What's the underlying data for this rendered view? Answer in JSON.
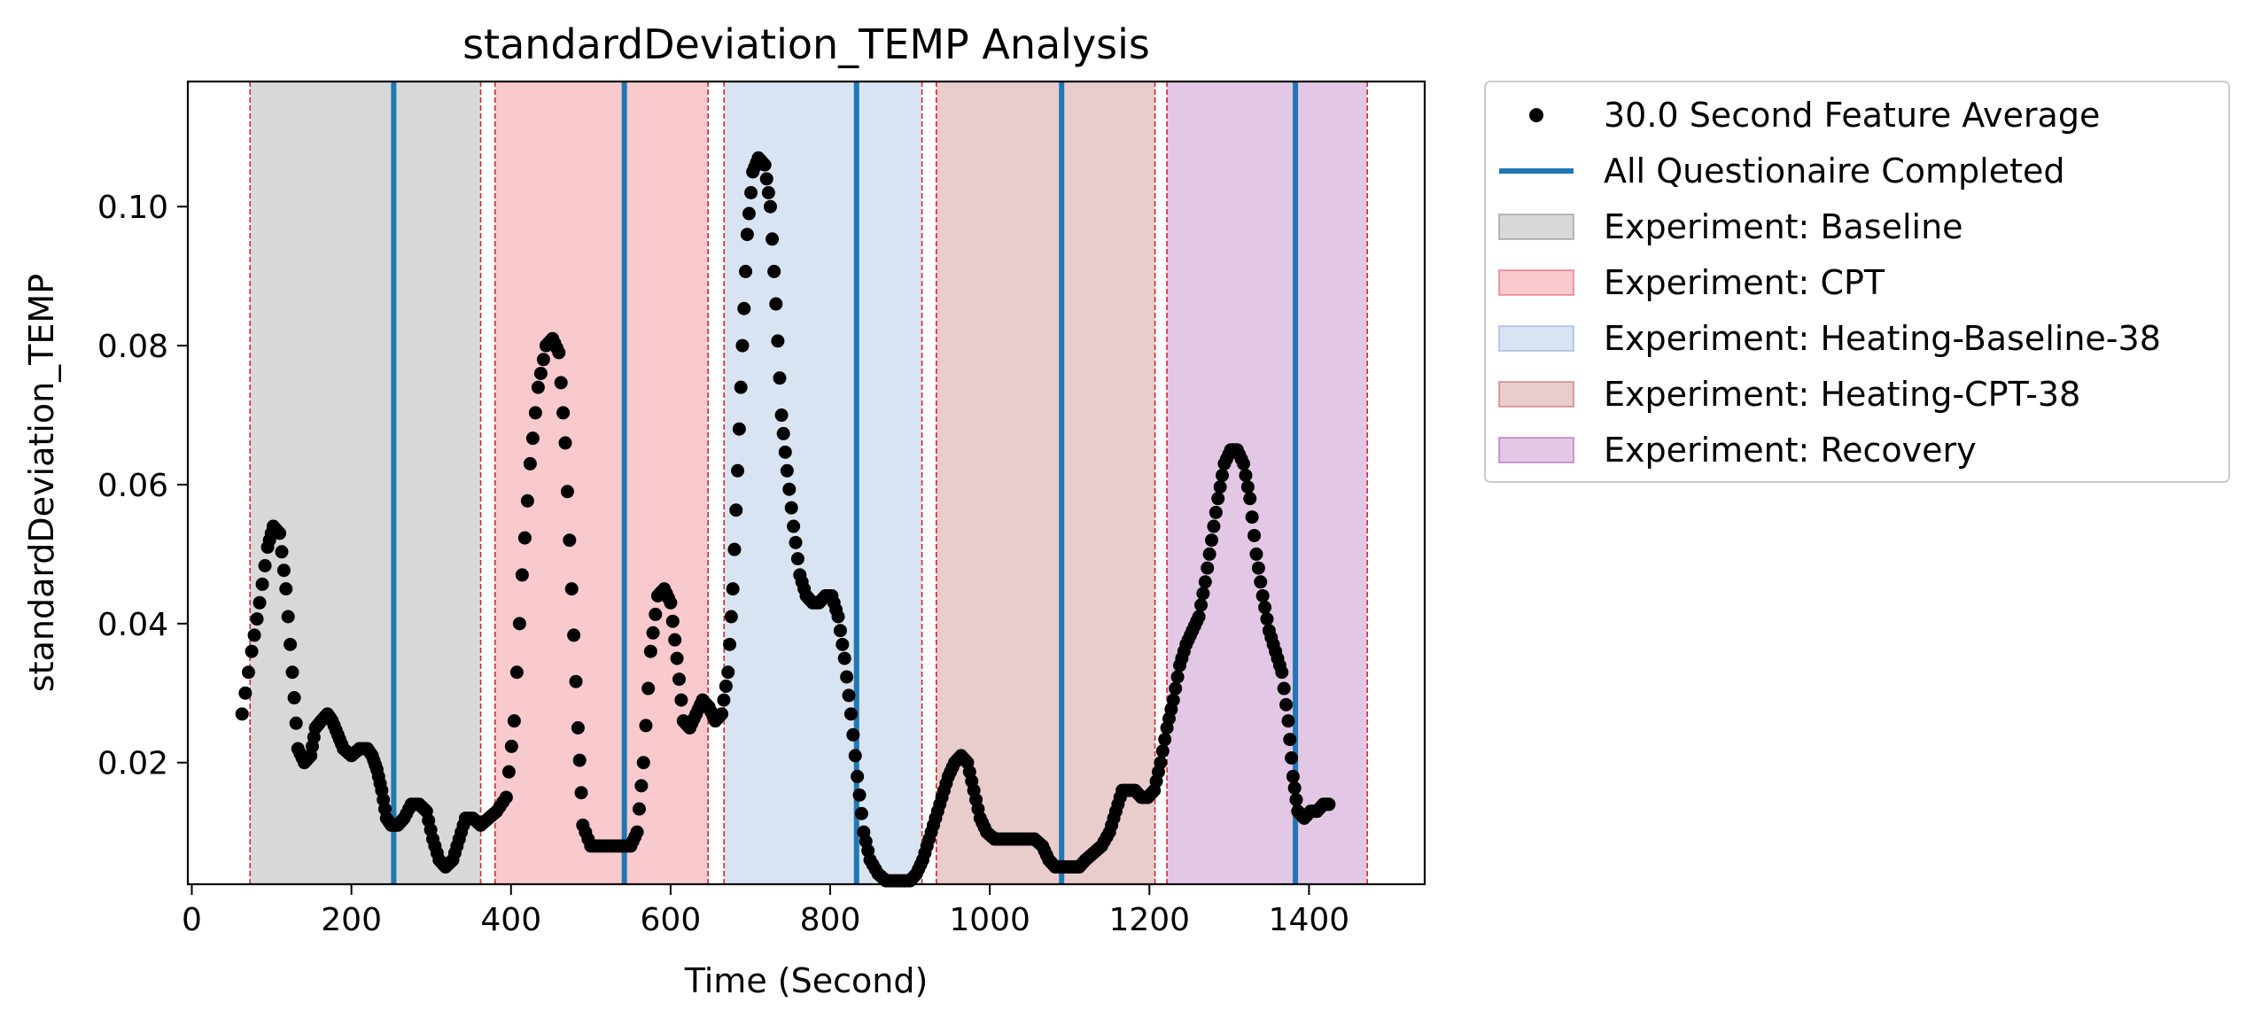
{
  "chart_data": {
    "type": "scatter",
    "title": "standardDeviation_TEMP Analysis",
    "xlabel": "Time (Second)",
    "ylabel": "standardDeviation_TEMP",
    "xlim": [
      -5,
      1545
    ],
    "ylim": [
      0.0025,
      0.118
    ],
    "xticks": [
      0,
      200,
      400,
      600,
      800,
      1000,
      1200,
      1400
    ],
    "yticks": [
      0.02,
      0.04,
      0.06,
      0.08,
      0.1
    ],
    "ytick_labels": [
      "0.02",
      "0.04",
      "0.06",
      "0.08",
      "0.10"
    ],
    "grid": false,
    "legend_position": "outside-right",
    "legend": [
      {
        "label": "30.0 Second Feature Average",
        "kind": "marker",
        "color": "#000000"
      },
      {
        "label": "All Questionaire Completed",
        "kind": "line",
        "color": "#1f77b4"
      },
      {
        "label": "Experiment: Baseline",
        "kind": "patch",
        "color": "#7f7f7f"
      },
      {
        "label": "Experiment: CPT",
        "kind": "patch",
        "color": "#e84c5a"
      },
      {
        "label": "Experiment: Heating-Baseline-38",
        "kind": "patch",
        "color": "#7ea7d0"
      },
      {
        "label": "Experiment: Heating-CPT-38",
        "kind": "patch",
        "color": "#b55b55"
      },
      {
        "label": "Experiment: Recovery",
        "kind": "patch",
        "color": "#a14aa8"
      }
    ],
    "phases": [
      {
        "name": "Experiment: Baseline",
        "start": 73,
        "end": 362,
        "color": "#7f7f7f"
      },
      {
        "name": "Experiment: CPT",
        "start": 380,
        "end": 647,
        "color": "#e84c5a"
      },
      {
        "name": "Experiment: Heating-Baseline-38",
        "start": 667,
        "end": 915,
        "color": "#7ea7d0"
      },
      {
        "name": "Experiment: Heating-CPT-38",
        "start": 933,
        "end": 1207,
        "color": "#b55b55"
      },
      {
        "name": "Experiment: Recovery",
        "start": 1222,
        "end": 1473,
        "color": "#a14aa8"
      }
    ],
    "phase_boundaries": [
      73,
      362,
      380,
      647,
      667,
      915,
      933,
      1207,
      1222,
      1473
    ],
    "questionnaire_completed": [
      253,
      542,
      833,
      1090,
      1383
    ],
    "series": [
      {
        "name": "30.0 Second Feature Average",
        "color": "#000000",
        "points": [
          [
            63,
            0.027
          ],
          [
            75,
            0.036
          ],
          [
            85,
            0.043
          ],
          [
            95,
            0.051
          ],
          [
            102,
            0.054
          ],
          [
            110,
            0.053
          ],
          [
            118,
            0.045
          ],
          [
            126,
            0.033
          ],
          [
            133,
            0.022
          ],
          [
            141,
            0.02
          ],
          [
            149,
            0.021
          ],
          [
            155,
            0.025
          ],
          [
            162,
            0.026
          ],
          [
            170,
            0.027
          ],
          [
            176,
            0.026
          ],
          [
            183,
            0.024
          ],
          [
            190,
            0.022
          ],
          [
            200,
            0.021
          ],
          [
            210,
            0.022
          ],
          [
            220,
            0.022
          ],
          [
            226,
            0.021
          ],
          [
            232,
            0.019
          ],
          [
            238,
            0.016
          ],
          [
            244,
            0.012
          ],
          [
            250,
            0.011
          ],
          [
            258,
            0.011
          ],
          [
            266,
            0.012
          ],
          [
            275,
            0.014
          ],
          [
            285,
            0.014
          ],
          [
            294,
            0.013
          ],
          [
            302,
            0.009
          ],
          [
            310,
            0.006
          ],
          [
            318,
            0.005
          ],
          [
            327,
            0.006
          ],
          [
            335,
            0.009
          ],
          [
            343,
            0.012
          ],
          [
            352,
            0.012
          ],
          [
            362,
            0.011
          ],
          [
            372,
            0.012
          ],
          [
            382,
            0.013
          ],
          [
            394,
            0.015
          ],
          [
            404,
            0.026
          ],
          [
            414,
            0.047
          ],
          [
            424,
            0.063
          ],
          [
            434,
            0.074
          ],
          [
            444,
            0.08
          ],
          [
            452,
            0.081
          ],
          [
            460,
            0.079
          ],
          [
            468,
            0.066
          ],
          [
            476,
            0.045
          ],
          [
            484,
            0.025
          ],
          [
            490,
            0.011
          ],
          [
            500,
            0.008
          ],
          [
            510,
            0.008
          ],
          [
            520,
            0.008
          ],
          [
            530,
            0.008
          ],
          [
            540,
            0.008
          ],
          [
            550,
            0.008
          ],
          [
            558,
            0.01
          ],
          [
            566,
            0.02
          ],
          [
            575,
            0.036
          ],
          [
            584,
            0.044
          ],
          [
            592,
            0.045
          ],
          [
            600,
            0.043
          ],
          [
            608,
            0.035
          ],
          [
            616,
            0.026
          ],
          [
            624,
            0.025
          ],
          [
            632,
            0.027
          ],
          [
            640,
            0.029
          ],
          [
            648,
            0.028
          ],
          [
            656,
            0.026
          ],
          [
            664,
            0.027
          ],
          [
            672,
            0.033
          ],
          [
            678,
            0.045
          ],
          [
            684,
            0.062
          ],
          [
            690,
            0.08
          ],
          [
            696,
            0.096
          ],
          [
            703,
            0.105
          ],
          [
            710,
            0.107
          ],
          [
            718,
            0.106
          ],
          [
            725,
            0.1
          ],
          [
            732,
            0.086
          ],
          [
            739,
            0.07
          ],
          [
            746,
            0.062
          ],
          [
            754,
            0.054
          ],
          [
            762,
            0.047
          ],
          [
            770,
            0.044
          ],
          [
            778,
            0.043
          ],
          [
            786,
            0.043
          ],
          [
            794,
            0.044
          ],
          [
            802,
            0.044
          ],
          [
            810,
            0.041
          ],
          [
            818,
            0.035
          ],
          [
            826,
            0.027
          ],
          [
            834,
            0.018
          ],
          [
            842,
            0.01
          ],
          [
            850,
            0.006
          ],
          [
            860,
            0.004
          ],
          [
            870,
            0.003
          ],
          [
            880,
            0.003
          ],
          [
            890,
            0.003
          ],
          [
            900,
            0.003
          ],
          [
            908,
            0.004
          ],
          [
            916,
            0.006
          ],
          [
            924,
            0.009
          ],
          [
            932,
            0.012
          ],
          [
            940,
            0.015
          ],
          [
            948,
            0.018
          ],
          [
            956,
            0.02
          ],
          [
            964,
            0.021
          ],
          [
            972,
            0.02
          ],
          [
            980,
            0.016
          ],
          [
            988,
            0.012
          ],
          [
            996,
            0.01
          ],
          [
            1006,
            0.009
          ],
          [
            1016,
            0.009
          ],
          [
            1026,
            0.009
          ],
          [
            1036,
            0.009
          ],
          [
            1046,
            0.009
          ],
          [
            1056,
            0.009
          ],
          [
            1066,
            0.008
          ],
          [
            1074,
            0.006
          ],
          [
            1082,
            0.005
          ],
          [
            1092,
            0.005
          ],
          [
            1102,
            0.005
          ],
          [
            1112,
            0.005
          ],
          [
            1120,
            0.006
          ],
          [
            1130,
            0.007
          ],
          [
            1140,
            0.008
          ],
          [
            1150,
            0.01
          ],
          [
            1158,
            0.013
          ],
          [
            1166,
            0.016
          ],
          [
            1174,
            0.016
          ],
          [
            1182,
            0.016
          ],
          [
            1190,
            0.015
          ],
          [
            1198,
            0.015
          ],
          [
            1206,
            0.016
          ],
          [
            1214,
            0.02
          ],
          [
            1222,
            0.025
          ],
          [
            1230,
            0.029
          ],
          [
            1238,
            0.034
          ],
          [
            1246,
            0.037
          ],
          [
            1254,
            0.039
          ],
          [
            1262,
            0.041
          ],
          [
            1270,
            0.046
          ],
          [
            1278,
            0.052
          ],
          [
            1286,
            0.058
          ],
          [
            1294,
            0.063
          ],
          [
            1302,
            0.065
          ],
          [
            1310,
            0.065
          ],
          [
            1318,
            0.063
          ],
          [
            1326,
            0.058
          ],
          [
            1334,
            0.05
          ],
          [
            1342,
            0.044
          ],
          [
            1350,
            0.039
          ],
          [
            1358,
            0.036
          ],
          [
            1366,
            0.033
          ],
          [
            1374,
            0.026
          ],
          [
            1380,
            0.018
          ],
          [
            1386,
            0.013
          ],
          [
            1394,
            0.012
          ],
          [
            1402,
            0.013
          ],
          [
            1410,
            0.013
          ],
          [
            1418,
            0.014
          ],
          [
            1425,
            0.014
          ]
        ]
      }
    ]
  }
}
